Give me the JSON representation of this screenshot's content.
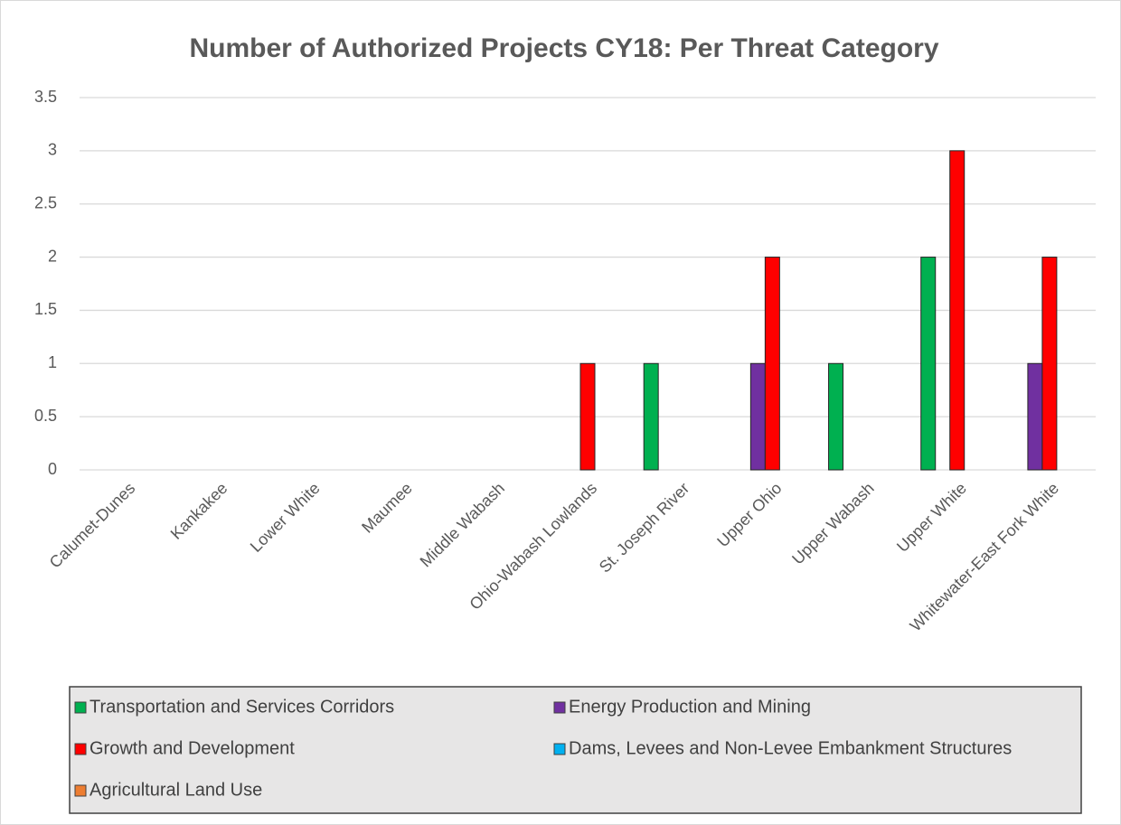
{
  "chart_data": {
    "type": "bar",
    "title": "Number of Authorized Projects CY18: Per Threat Category",
    "categories": [
      "Calumet-Dunes",
      "Kankakee",
      "Lower White",
      "Maumee",
      "Middle Wabash",
      "Ohio-Wabash Lowlands",
      "St. Joseph River",
      "Upper Ohio",
      "Upper Wabash",
      "Upper White",
      "Whitewater-East Fork White"
    ],
    "series": [
      {
        "name": "Transportation and Services Corridors",
        "color": "#00b050",
        "values": [
          0,
          0,
          0,
          0,
          0,
          0,
          1,
          0,
          1,
          2,
          0
        ]
      },
      {
        "name": "Energy Production and Mining",
        "color": "#7030a0",
        "values": [
          0,
          0,
          0,
          0,
          0,
          0,
          0,
          1,
          0,
          0,
          1
        ]
      },
      {
        "name": "Growth and Development",
        "color": "#ff0000",
        "values": [
          0,
          0,
          0,
          0,
          0,
          1,
          0,
          2,
          0,
          3,
          2
        ]
      },
      {
        "name": "Dams, Levees and Non-Levee Embankment Structures",
        "color": "#00b0f0",
        "values": [
          0,
          0,
          0,
          0,
          0,
          0,
          0,
          0,
          0,
          0,
          0
        ]
      },
      {
        "name": "Agricultural Land Use",
        "color": "#ed7d31",
        "values": [
          0,
          0,
          0,
          0,
          0,
          0,
          0,
          0,
          0,
          0,
          0
        ]
      }
    ],
    "ylim": [
      0,
      3.5
    ],
    "yticks": [
      0,
      0.5,
      1,
      1.5,
      2,
      2.5,
      3,
      3.5
    ],
    "grid": true,
    "legend": "bottom"
  }
}
